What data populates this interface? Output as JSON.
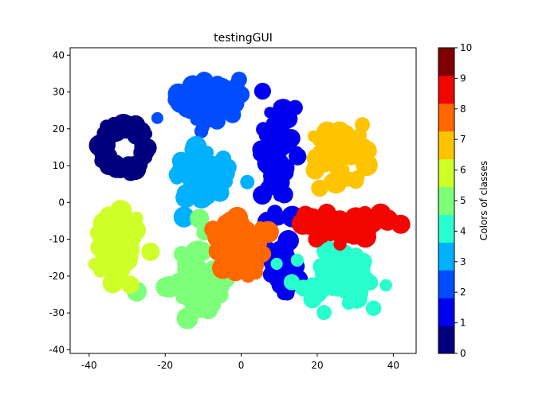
{
  "chart_data": {
    "type": "scatter",
    "title": "testingGUI",
    "xlabel": "",
    "ylabel": "",
    "xlim": [
      -45,
      46
    ],
    "ylim": [
      -41,
      42
    ],
    "x_ticks": [
      -40,
      -20,
      0,
      20,
      40
    ],
    "y_ticks": [
      -40,
      -30,
      -20,
      -10,
      0,
      10,
      20,
      30,
      40
    ],
    "grid": false,
    "colorbar": {
      "label": "Colors of classes",
      "range": [
        0,
        10
      ],
      "ticks": [
        0,
        1,
        2,
        3,
        4,
        5,
        6,
        7,
        8,
        9,
        10
      ],
      "colors": [
        "#00007f",
        "#0000f1",
        "#004dff",
        "#00b1ff",
        "#29ffce",
        "#7dff7a",
        "#ceff29",
        "#ffc400",
        "#ff6800",
        "#f10700",
        "#7f0000"
      ]
    },
    "clusters": [
      {
        "class": 0,
        "center": [
          -31,
          15
        ],
        "spread": [
          6,
          6
        ],
        "shape": "ring"
      },
      {
        "class": 1,
        "center": [
          9,
          12
        ],
        "spread": [
          4,
          13
        ],
        "shape": "blob"
      },
      {
        "class": 1,
        "center": [
          11,
          -18
        ],
        "spread": [
          2.5,
          5
        ],
        "shape": "blob"
      },
      {
        "class": 2,
        "center": [
          -9,
          28
        ],
        "spread": [
          7,
          6
        ],
        "shape": "blob"
      },
      {
        "class": 3,
        "center": [
          -11,
          7
        ],
        "spread": [
          7,
          7
        ],
        "shape": "blob"
      },
      {
        "class": 4,
        "center": [
          25,
          -20
        ],
        "spread": [
          10,
          6
        ],
        "shape": "blob"
      },
      {
        "class": 5,
        "center": [
          -12,
          -20
        ],
        "spread": [
          7,
          9
        ],
        "shape": "blob"
      },
      {
        "class": 6,
        "center": [
          -33,
          -12
        ],
        "spread": [
          6,
          9
        ],
        "shape": "blob"
      },
      {
        "class": 7,
        "center": [
          25,
          15
        ],
        "spread": [
          7,
          6
        ],
        "shape": "blob"
      },
      {
        "class": 8,
        "center": [
          0,
          -12
        ],
        "spread": [
          6,
          7
        ],
        "shape": "blob"
      },
      {
        "class": 9,
        "center": [
          27,
          -6
        ],
        "spread": [
          12,
          3
        ],
        "shape": "blob"
      }
    ]
  }
}
